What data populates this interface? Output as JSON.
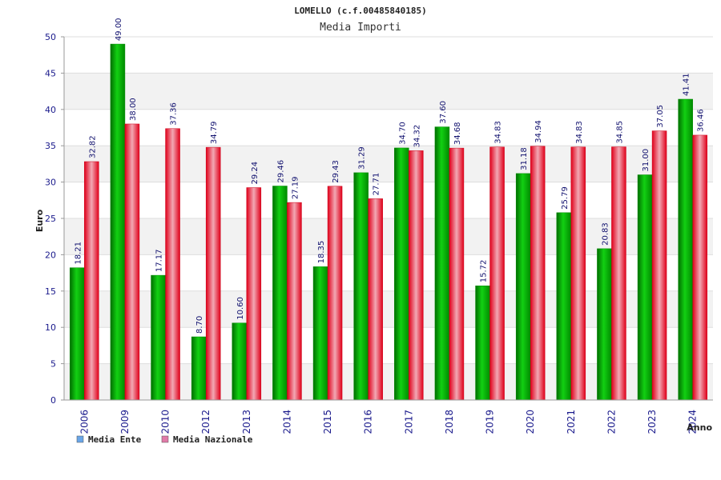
{
  "chart_data": {
    "type": "bar",
    "title": "LOMELLO (c.f.00485840185)",
    "subtitle": "Media Importi",
    "xlabel": "Anno",
    "ylabel": "Euro",
    "ylim": [
      0,
      50
    ],
    "yticks": [
      0,
      5,
      10,
      15,
      20,
      25,
      30,
      35,
      40,
      45,
      50
    ],
    "grid": true,
    "legend_position": "bottom-left",
    "categories": [
      "2006",
      "2009",
      "2010",
      "2012",
      "2013",
      "2014",
      "2015",
      "2016",
      "2017",
      "2018",
      "2019",
      "2020",
      "2021",
      "2022",
      "2023",
      "2024"
    ],
    "series": [
      {
        "name": "Media Ente",
        "color": "#00c000",
        "legend_color": "#6aa6e8",
        "values": [
          18.21,
          49.0,
          17.17,
          8.7,
          10.6,
          29.46,
          18.35,
          31.29,
          34.7,
          37.6,
          15.72,
          31.18,
          25.79,
          20.83,
          31.0,
          41.41
        ],
        "labels": [
          "18.21",
          "49.00",
          "17.17",
          "8.70",
          "10.60",
          "29.46",
          "18.35",
          "31.29",
          "34.70",
          "37.60",
          "15.72",
          "31.18",
          "25.79",
          "20.83",
          "31.00",
          "41.41"
        ]
      },
      {
        "name": "Media Nazionale",
        "color": "#e8101e",
        "legend_color": "#e07aa8",
        "values": [
          32.82,
          38.0,
          37.36,
          34.79,
          29.24,
          27.19,
          29.43,
          27.71,
          34.32,
          34.68,
          34.83,
          34.94,
          34.83,
          34.85,
          37.05,
          36.46
        ],
        "labels": [
          "32.82",
          "38.00",
          "37.36",
          "34.79",
          "29.24",
          "27.19",
          "29.43",
          "27.71",
          "34.32",
          "34.68",
          "34.83",
          "34.94",
          "34.83",
          "34.85",
          "37.05",
          "36.46"
        ]
      }
    ]
  }
}
